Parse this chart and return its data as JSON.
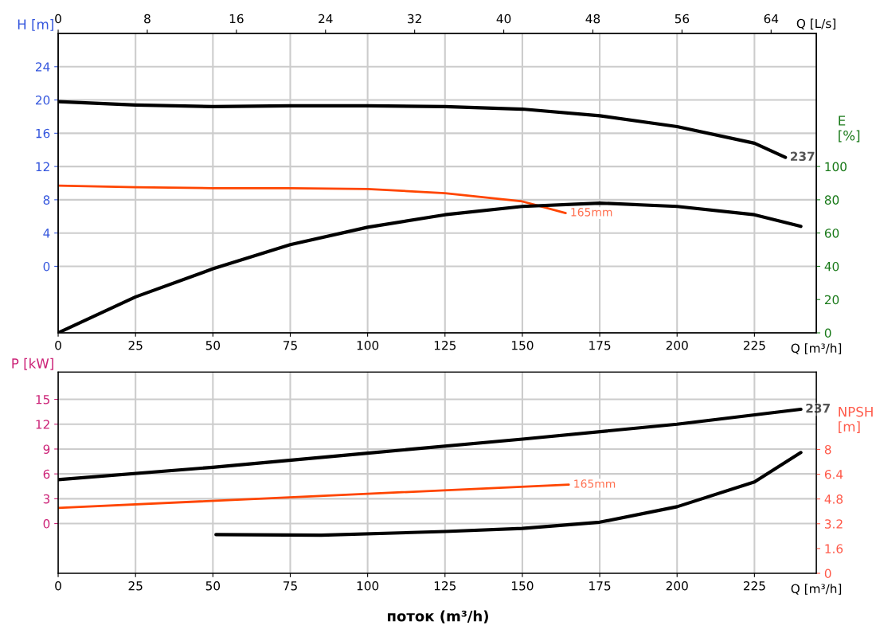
{
  "chart_data": [
    {
      "type": "line",
      "xlabel": "Q [m³/h]",
      "x2label": "Q [L/s]",
      "ylabel": "H [m]",
      "y2label": "E [%]",
      "xlim": [
        0,
        245
      ],
      "xticks": [
        0,
        25,
        50,
        75,
        100,
        125,
        150,
        175,
        200,
        225
      ],
      "x2lim": [
        0,
        68.06
      ],
      "x2ticks": [
        0,
        8,
        16,
        24,
        32,
        40,
        48,
        56,
        64
      ],
      "ylim": [
        -8,
        28
      ],
      "yticks": [
        0,
        4,
        8,
        12,
        16,
        20,
        24
      ],
      "y2lim": [
        0,
        180
      ],
      "y2ticks": [
        0,
        20,
        40,
        60,
        80,
        100
      ],
      "grid": true,
      "legend": false,
      "series": [
        {
          "color": "#000000",
          "x": [
            0,
            25,
            50,
            75,
            100,
            125,
            150,
            175,
            200,
            225,
            235
          ],
          "values": [
            19.8,
            19.4,
            19.2,
            19.3,
            19.3,
            19.2,
            18.9,
            18.1,
            16.8,
            14.8,
            13.1
          ]
        },
        {
          "color": "#ff4500",
          "x": [
            0,
            25,
            50,
            75,
            100,
            125,
            150,
            164
          ],
          "values": [
            9.7,
            9.5,
            9.4,
            9.4,
            9.3,
            8.8,
            7.8,
            6.4
          ]
        },
        {
          "color": "#000000",
          "axis": "y2",
          "x": [
            0,
            25,
            50,
            75,
            100,
            125,
            150,
            175,
            200,
            225,
            240
          ],
          "values": [
            0,
            21.6,
            38.5,
            53,
            63.5,
            71,
            76,
            78,
            76,
            71,
            64
          ]
        }
      ],
      "annotations": [
        {
          "text": "237",
          "x": 235,
          "y": 13.1
        },
        {
          "text": "165mm",
          "x": 164,
          "y": 6.4
        }
      ]
    },
    {
      "type": "line",
      "xlabel": "Q [m³/h]",
      "ylabel": "P [kW]",
      "y2label": "NPSH [m]",
      "xlim": [
        0,
        245
      ],
      "xticks": [
        0,
        25,
        50,
        75,
        100,
        125,
        150,
        175,
        200,
        225
      ],
      "ylim": [
        -6,
        18.3
      ],
      "yticks": [
        0,
        3,
        6,
        9,
        12,
        15
      ],
      "y2lim": [
        0,
        13
      ],
      "y2ticks": [
        0,
        1.6,
        3.2,
        4.8,
        6.4,
        8
      ],
      "grid": true,
      "legend": false,
      "series": [
        {
          "color": "#000000",
          "x": [
            0,
            50,
            100,
            150,
            200,
            240
          ],
          "values": [
            5.3,
            6.8,
            8.5,
            10.2,
            12.0,
            13.8
          ]
        },
        {
          "color": "#ff4500",
          "x": [
            0,
            100,
            165
          ],
          "values": [
            1.9,
            3.6,
            4.7
          ]
        },
        {
          "color": "#000000",
          "axis": "y2",
          "x": [
            51,
            85,
            125,
            150,
            175,
            200,
            225,
            240
          ],
          "values": [
            2.5,
            2.46,
            2.7,
            2.9,
            3.3,
            4.3,
            5.9,
            7.8
          ]
        }
      ],
      "annotations": [
        {
          "text": "237",
          "x": 240,
          "y": 13.8
        },
        {
          "text": "165mm",
          "x": 165,
          "y": 4.7
        },
        "поток (m³/h)"
      ]
    }
  ]
}
